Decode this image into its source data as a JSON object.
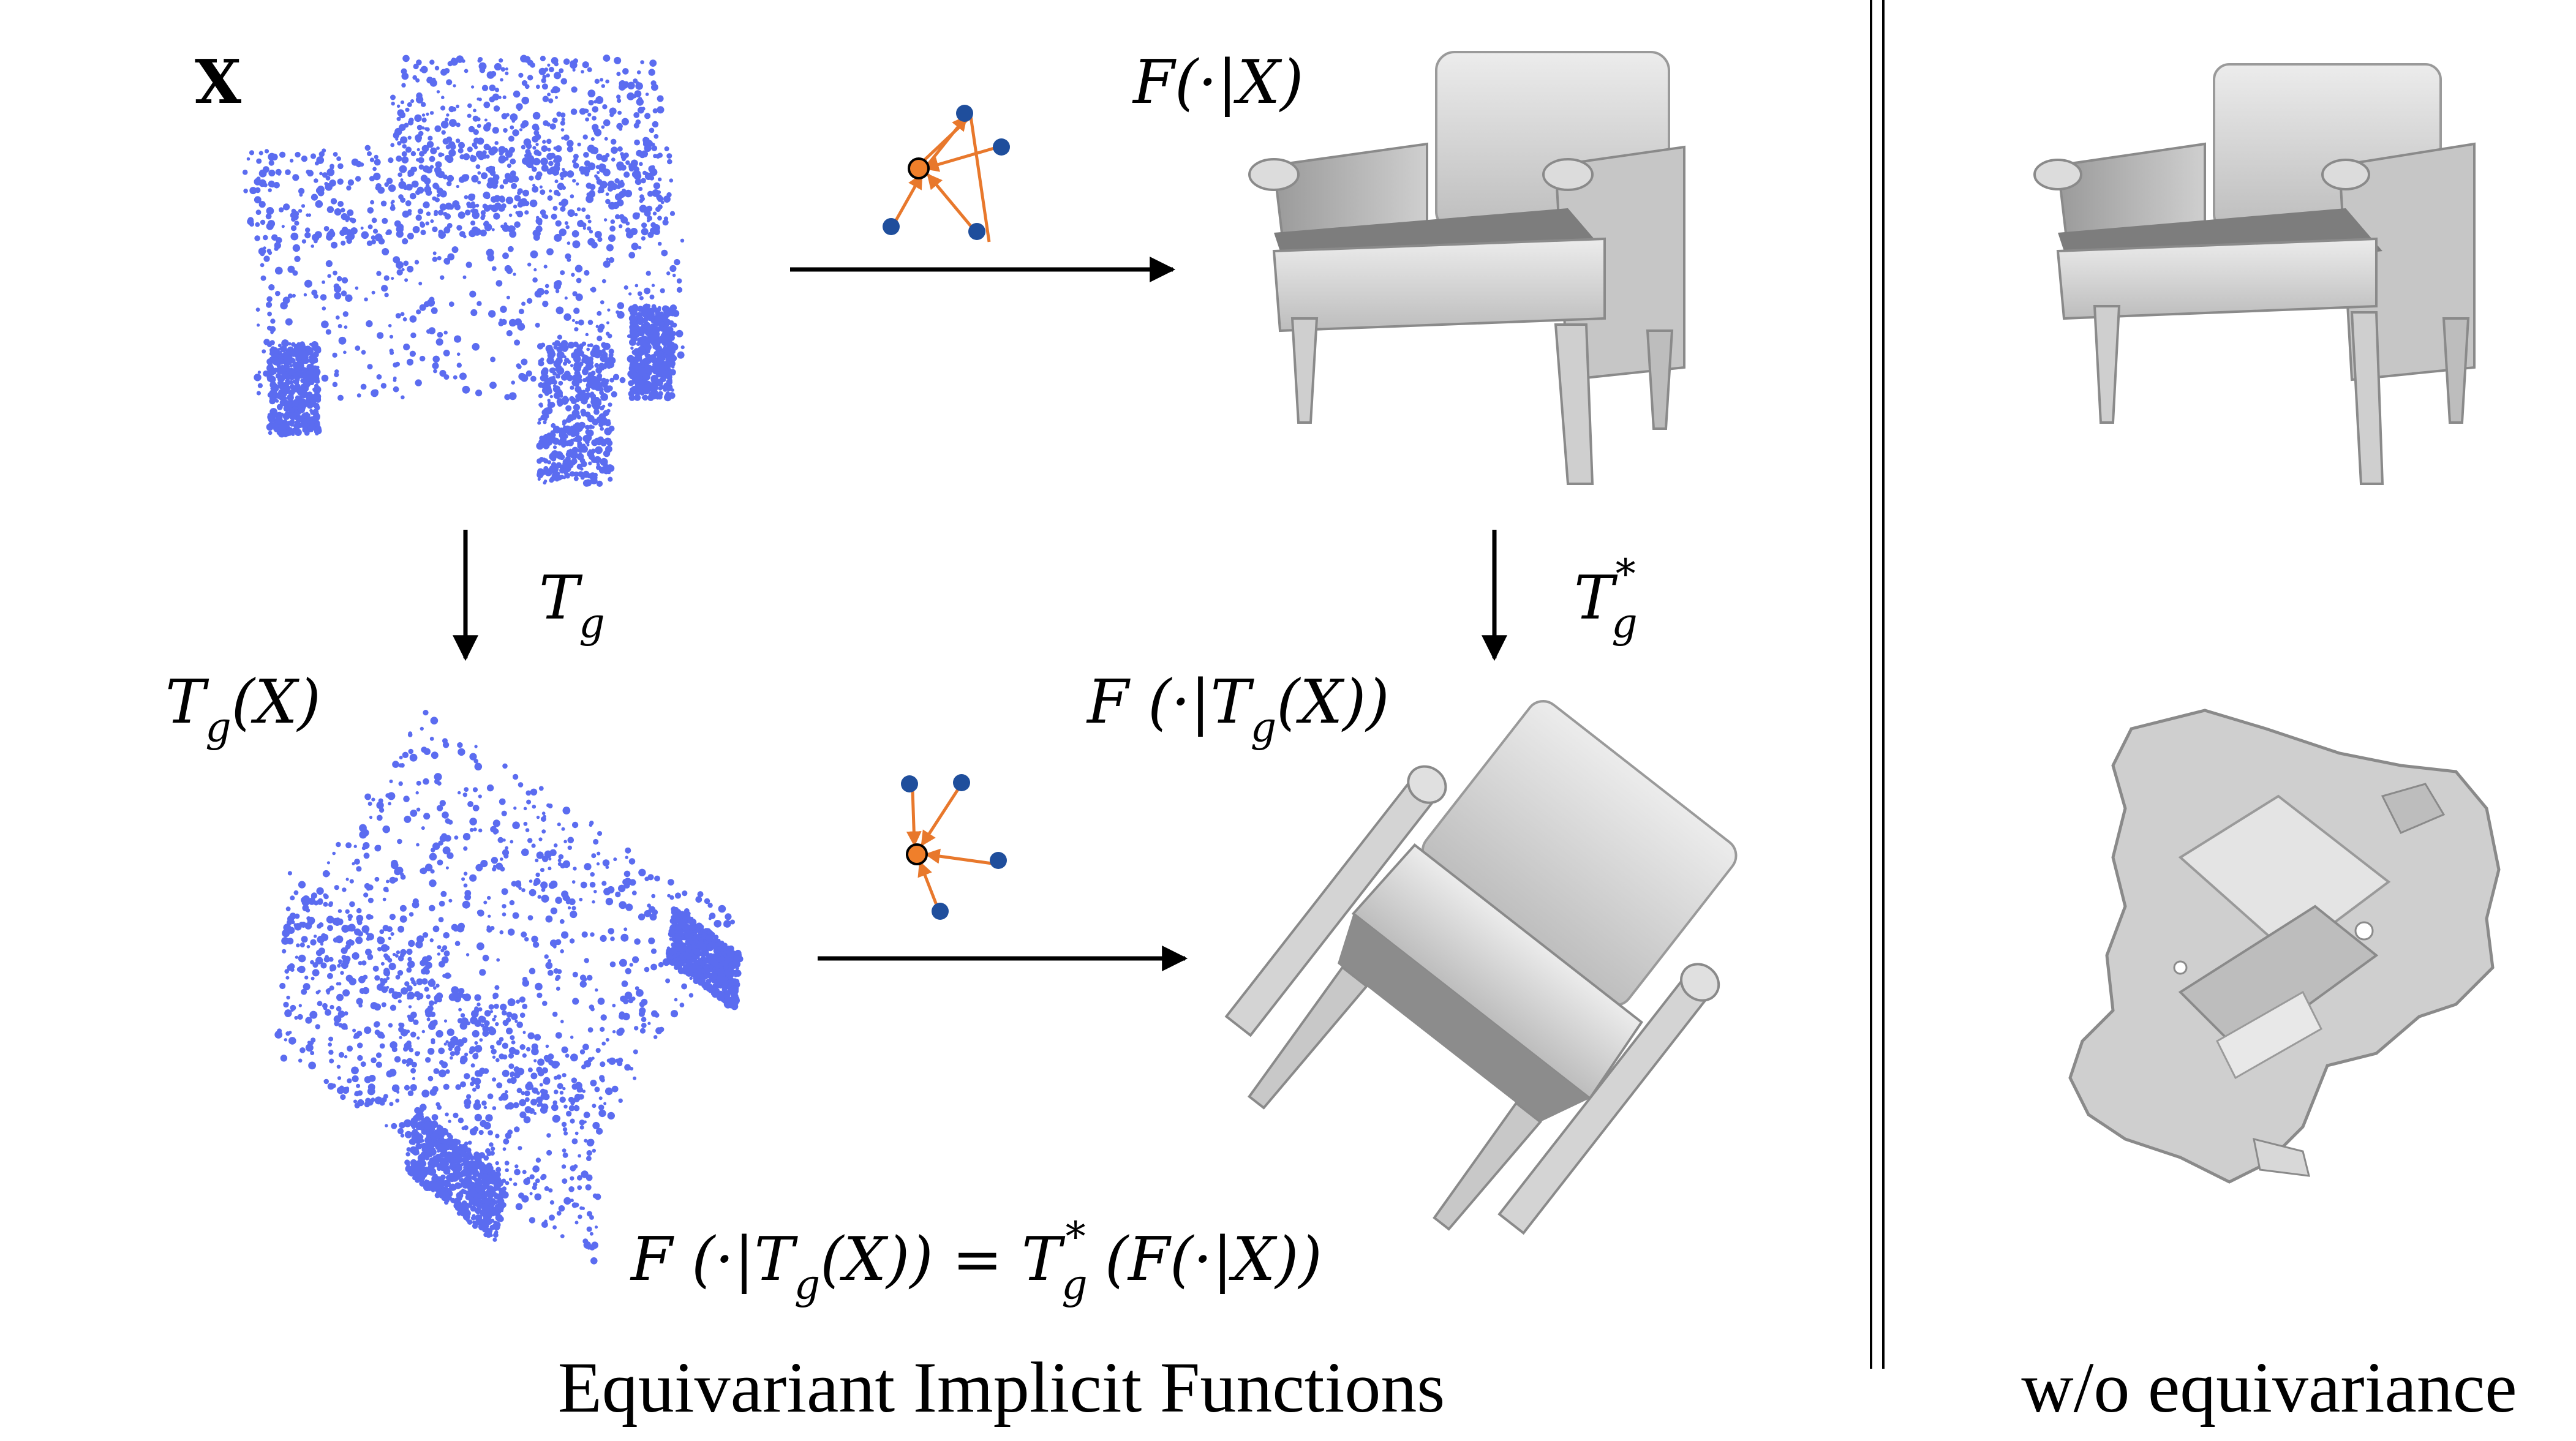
{
  "labels": {
    "x_label": "X",
    "f_of_x": "F(·|X)",
    "tg_arrow": "T",
    "tg_sub": "g",
    "tg_x": "T",
    "tg_x_sub": "g",
    "tg_x_rest": "(X)",
    "tstar": "T",
    "tstar_sub": "g",
    "tstar_sup": "*",
    "f_tg_x_pre": "F (·|T",
    "f_tg_x_sub": "g",
    "f_tg_x_post": "(X))",
    "eq_lhs_pre": "F (·|T",
    "eq_lhs_sub": "g",
    "eq_lhs_post": "(X)) = T",
    "eq_rhs_sub": "g",
    "eq_rhs_sup": "*",
    "eq_rhs_post": " (F(·|X))"
  },
  "captions": {
    "left": "Equivariant Implicit Functions",
    "right": "w/o equivariance"
  },
  "colors": {
    "points": "#5b6cf0",
    "mesh_light": "#e2e2e2",
    "mesh_mid": "#b9b9b9",
    "mesh_dark": "#7d7d7d",
    "node_blue": "#1f4e9c",
    "node_orange": "#f07f2a",
    "edge_orange": "#e8782c",
    "arrow": "#000000"
  }
}
